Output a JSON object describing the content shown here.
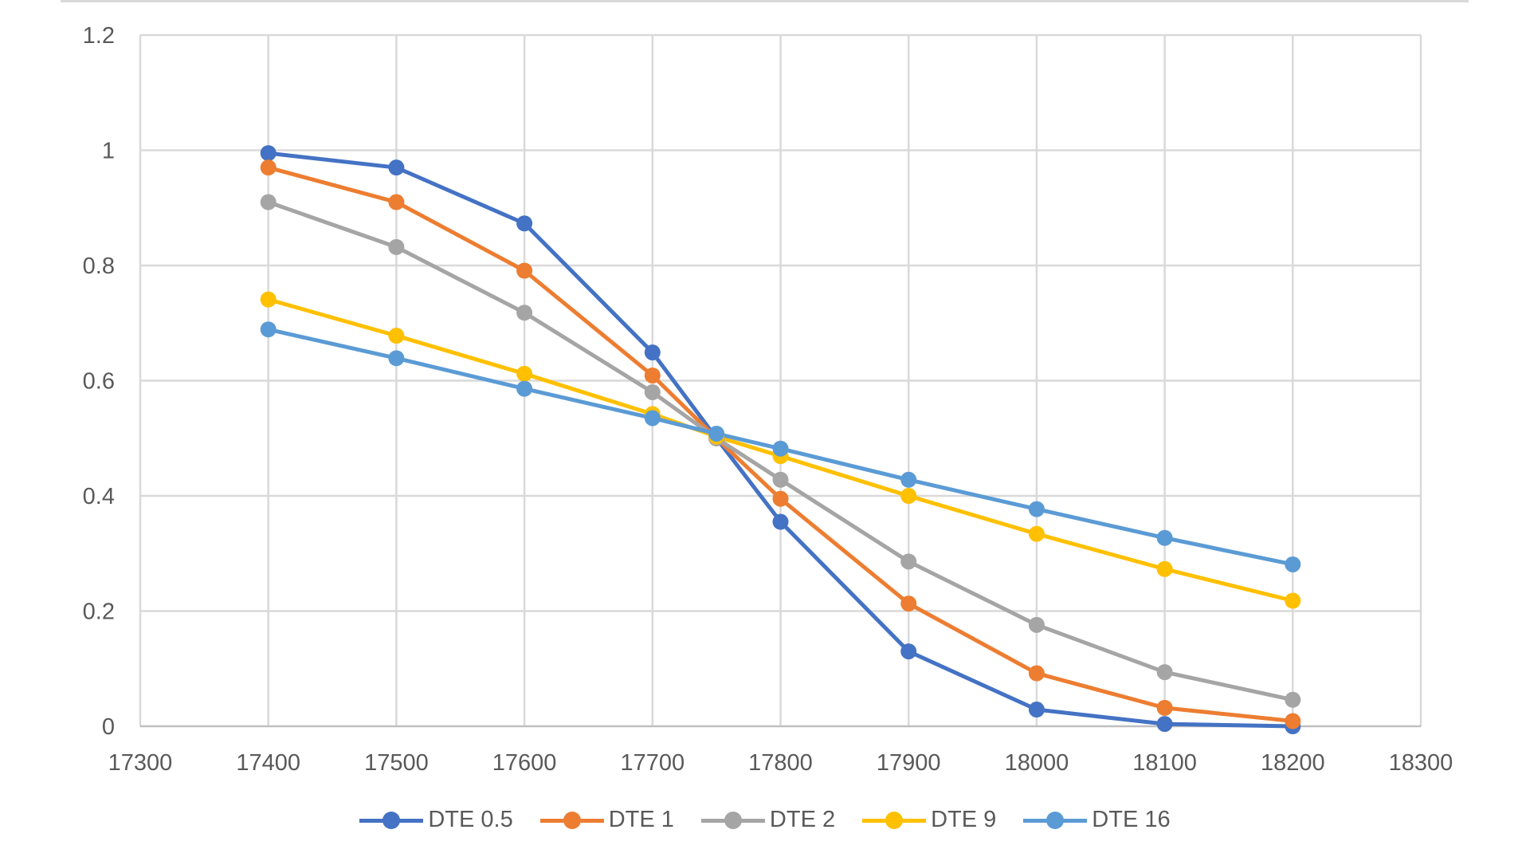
{
  "chart_data": {
    "type": "line",
    "title": "",
    "xlabel": "",
    "ylabel": "",
    "x": [
      17400,
      17500,
      17600,
      17700,
      17750,
      17800,
      17900,
      18000,
      18100,
      18200
    ],
    "xlim": [
      17300,
      18300
    ],
    "ylim": [
      0,
      1.2
    ],
    "xticks": [
      "17300",
      "17400",
      "17500",
      "17600",
      "17700",
      "17800",
      "17900",
      "18000",
      "18100",
      "18200",
      "18300"
    ],
    "yticks": [
      "0",
      "0.2",
      "0.4",
      "0.6",
      "0.8",
      "1",
      "1.2"
    ],
    "grid": true,
    "legend_position": "bottom",
    "series": [
      {
        "name": "DTE 0.5",
        "color": "#4472C4",
        "values": [
          0.995,
          0.97,
          0.873,
          0.649,
          0.5,
          0.355,
          0.13,
          0.029,
          0.004,
          0.0
        ]
      },
      {
        "name": "DTE 1",
        "color": "#ED7D31",
        "values": [
          0.97,
          0.91,
          0.791,
          0.609,
          0.5,
          0.395,
          0.213,
          0.092,
          0.032,
          0.009
        ]
      },
      {
        "name": "DTE 2",
        "color": "#A5A5A5",
        "values": [
          0.91,
          0.832,
          0.718,
          0.58,
          0.5,
          0.428,
          0.286,
          0.176,
          0.094,
          0.046
        ]
      },
      {
        "name": "DTE 9",
        "color": "#FFC000",
        "values": [
          0.741,
          0.678,
          0.612,
          0.542,
          0.503,
          0.469,
          0.4,
          0.334,
          0.273,
          0.218
        ]
      },
      {
        "name": "DTE 16",
        "color": "#5B9BD5",
        "values": [
          0.689,
          0.639,
          0.586,
          0.535,
          0.508,
          0.482,
          0.428,
          0.377,
          0.327,
          0.281
        ]
      }
    ]
  }
}
